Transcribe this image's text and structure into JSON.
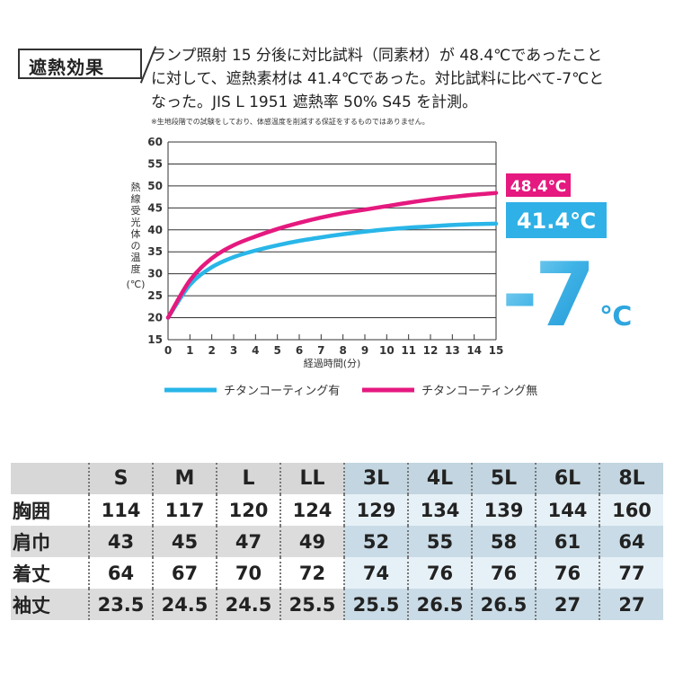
{
  "header": {
    "badge": "遮熱効果",
    "description_lines": [
      "ランプ照射 15 分後に対比試料（同素材）が 48.4℃であったこと",
      "に対して、遮熱素材は 41.4℃であった。対比試料に比べて-7℃と",
      "なった。JIS L 1951 遮熱率 50% S45 を計測。"
    ],
    "note": "※生地段階での試験をしており、体感温度を削減する保証をするものではありません。"
  },
  "chart_data": {
    "type": "line",
    "ylabel": "熱線受光体の温度（℃）",
    "xlabel": "経過時間(分)",
    "xlim": [
      0,
      15
    ],
    "ylim": [
      15,
      60
    ],
    "x_ticks": [
      0,
      1,
      2,
      3,
      4,
      5,
      6,
      7,
      8,
      9,
      10,
      11,
      12,
      13,
      14,
      15
    ],
    "y_ticks": [
      15,
      20,
      25,
      30,
      35,
      40,
      45,
      50,
      55,
      60
    ],
    "grid": "horizontal",
    "legend_position": "bottom",
    "series": [
      {
        "name": "チタンコーティング有",
        "color": "#29b6e8",
        "x": [
          0,
          1,
          2,
          3,
          4,
          5,
          6,
          7,
          8,
          9,
          10,
          11,
          12,
          13,
          14,
          15
        ],
        "y": [
          20,
          27.5,
          31.5,
          33.8,
          35.3,
          36.5,
          37.5,
          38.3,
          39.0,
          39.6,
          40.1,
          40.5,
          40.8,
          41.1,
          41.3,
          41.4
        ]
      },
      {
        "name": "チタンコーティング無",
        "color": "#e5197f",
        "x": [
          0,
          1,
          2,
          3,
          4,
          5,
          6,
          7,
          8,
          9,
          10,
          11,
          12,
          13,
          14,
          15
        ],
        "y": [
          20,
          28.5,
          33.5,
          36.5,
          38.5,
          40.2,
          41.6,
          42.8,
          43.8,
          44.6,
          45.4,
          46.2,
          46.9,
          47.5,
          48.0,
          48.4
        ]
      }
    ],
    "annotations": {
      "hot_label": "48.4℃",
      "cool_label": "41.4℃",
      "diff_label": "-7",
      "diff_unit": "℃"
    }
  },
  "size_table": {
    "sizes": [
      "S",
      "M",
      "L",
      "LL",
      "3L",
      "4L",
      "5L",
      "6L",
      "8L"
    ],
    "rows": [
      {
        "label": "胸囲",
        "values": [
          "114",
          "117",
          "120",
          "124",
          "129",
          "134",
          "139",
          "144",
          "160"
        ]
      },
      {
        "label": "肩巾",
        "values": [
          "43",
          "45",
          "47",
          "49",
          "52",
          "55",
          "58",
          "61",
          "64"
        ]
      },
      {
        "label": "着丈",
        "values": [
          "64",
          "67",
          "70",
          "72",
          "74",
          "76",
          "76",
          "76",
          "77"
        ]
      },
      {
        "label": "袖丈",
        "values": [
          "23.5",
          "24.5",
          "24.5",
          "25.5",
          "25.5",
          "26.5",
          "26.5",
          "27",
          "27"
        ]
      }
    ],
    "colors": {
      "light_sizes_bg": "#e6f1f7",
      "header_bg": "#d7d7d7"
    }
  }
}
